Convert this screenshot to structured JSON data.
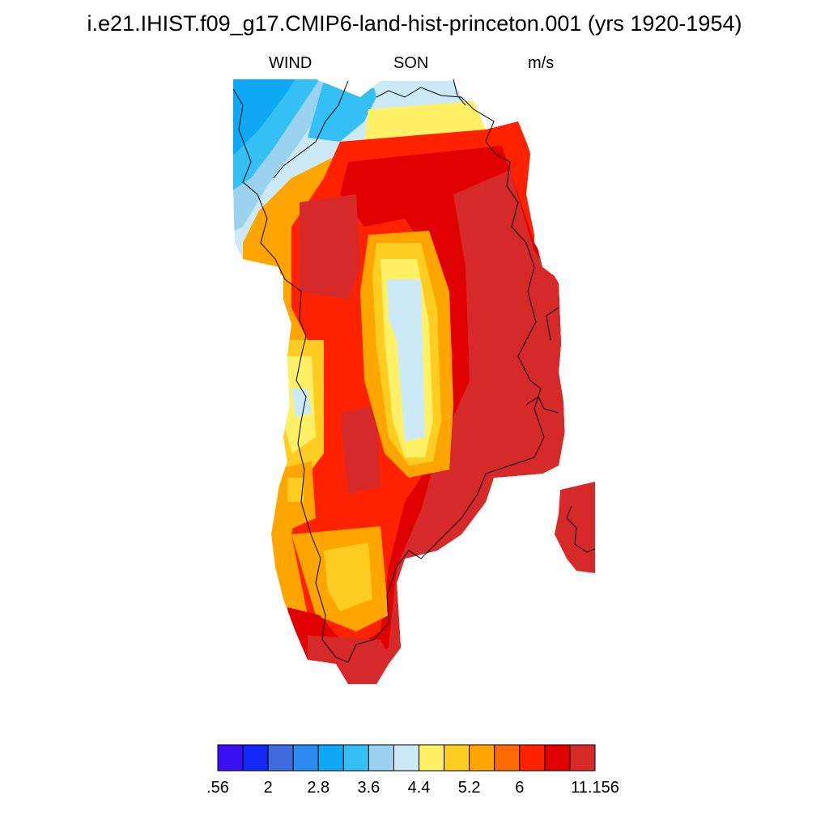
{
  "header": {
    "title": "i.e21.IHIST.f09_g17.CMIP6-land-hist-princeton.001 (yrs 1920-1954)",
    "left_label": "WIND",
    "center_label": "SON",
    "right_label": "m/s"
  },
  "colorbar": {
    "colors": [
      "#3a0ff2",
      "#1428f5",
      "#3f6be0",
      "#2a8af0",
      "#0fa8f5",
      "#35c0f5",
      "#9ad2f0",
      "#cbe9f6",
      "#fff066",
      "#ffcc22",
      "#ffa500",
      "#ff6a00",
      "#ff2200",
      "#e00000",
      "#d62a2a"
    ],
    "labels": [
      ".56",
      "2",
      "2.8",
      "3.6",
      "4.4",
      "5.2",
      "6",
      "11.156"
    ]
  },
  "map": {
    "region": "Greenland",
    "variable": "WIND",
    "season": "SON",
    "units": "m/s"
  }
}
